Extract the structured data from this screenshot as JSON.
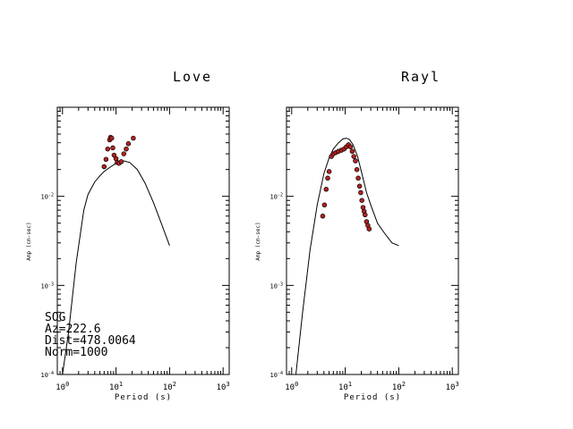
{
  "chart_data": [
    {
      "type": "scatter",
      "title": "Love",
      "xlabel": "Period (s)",
      "ylabel": "Amp (cm-sec)",
      "xscale": "log",
      "yscale": "log",
      "xlim": [
        0.8,
        1300
      ],
      "ylim": [
        0.0001,
        0.1
      ],
      "xticks": [
        {
          "v": 1,
          "b": "10",
          "e": "0"
        },
        {
          "v": 10,
          "b": "10",
          "e": "1"
        },
        {
          "v": 100,
          "b": "10",
          "e": "2"
        },
        {
          "v": 1000,
          "b": "10",
          "e": "3"
        }
      ],
      "yticks": [
        {
          "v": 0.0001,
          "b": "10",
          "e": "-4"
        },
        {
          "v": 0.001,
          "b": "10",
          "e": "-3"
        },
        {
          "v": 0.01,
          "b": "10",
          "e": "-2"
        }
      ],
      "grid": false,
      "annotations": [
        "SOG",
        "Az=222.6",
        "Dist=478.0064",
        "Norm=1000"
      ],
      "series": [
        {
          "kind": "line",
          "color": "#000000",
          "points": [
            [
              1.0,
              7e-05
            ],
            [
              1.3,
              0.0003
            ],
            [
              1.8,
              0.0018
            ],
            [
              2.5,
              0.007
            ],
            [
              3.0,
              0.0105
            ],
            [
              4.0,
              0.0145
            ],
            [
              5.0,
              0.017
            ],
            [
              6.0,
              0.019
            ],
            [
              8.0,
              0.0215
            ],
            [
              10.0,
              0.0235
            ],
            [
              14.0,
              0.025
            ],
            [
              18.0,
              0.024
            ],
            [
              25.0,
              0.02
            ],
            [
              35.0,
              0.014
            ],
            [
              50.0,
              0.0085
            ],
            [
              70.0,
              0.005
            ],
            [
              100.0,
              0.0028
            ]
          ]
        },
        {
          "kind": "scatter",
          "color": "#b22222",
          "points": [
            [
              6.0,
              0.0215
            ],
            [
              6.5,
              0.026
            ],
            [
              7.0,
              0.034
            ],
            [
              7.6,
              0.043
            ],
            [
              7.9,
              0.046
            ],
            [
              8.3,
              0.045
            ],
            [
              8.7,
              0.035
            ],
            [
              9.2,
              0.029
            ],
            [
              10.0,
              0.0265
            ],
            [
              10.5,
              0.024
            ],
            [
              11.3,
              0.0235
            ],
            [
              12.5,
              0.0245
            ],
            [
              14.0,
              0.03
            ],
            [
              15.5,
              0.034
            ],
            [
              17.0,
              0.039
            ],
            [
              21.0,
              0.045
            ]
          ]
        }
      ]
    },
    {
      "type": "scatter",
      "title": "Rayl",
      "xlabel": "Period (s)",
      "ylabel": "Amp (cm-sec)",
      "xscale": "log",
      "yscale": "log",
      "xlim": [
        0.8,
        1300
      ],
      "ylim": [
        0.0001,
        0.1
      ],
      "xticks": [
        {
          "v": 1,
          "b": "10",
          "e": "0"
        },
        {
          "v": 10,
          "b": "10",
          "e": "1"
        },
        {
          "v": 100,
          "b": "10",
          "e": "2"
        },
        {
          "v": 1000,
          "b": "10",
          "e": "3"
        }
      ],
      "yticks": [
        {
          "v": 0.0001,
          "b": "10",
          "e": "-4"
        },
        {
          "v": 0.001,
          "b": "10",
          "e": "-3"
        },
        {
          "v": 0.01,
          "b": "10",
          "e": "-2"
        }
      ],
      "grid": false,
      "annotations": [],
      "series": [
        {
          "kind": "line",
          "color": "#000000",
          "points": [
            [
              1.2,
              0.0001
            ],
            [
              1.6,
              0.0005
            ],
            [
              2.2,
              0.0025
            ],
            [
              3.0,
              0.008
            ],
            [
              4.0,
              0.018
            ],
            [
              5.0,
              0.027
            ],
            [
              6.0,
              0.034
            ],
            [
              7.5,
              0.04
            ],
            [
              9.0,
              0.044
            ],
            [
              10.5,
              0.045
            ],
            [
              12.0,
              0.0435
            ],
            [
              14.0,
              0.038
            ],
            [
              17.0,
              0.028
            ],
            [
              20.0,
              0.019
            ],
            [
              25.0,
              0.011
            ],
            [
              30.0,
              0.008
            ],
            [
              40.0,
              0.005
            ],
            [
              55.0,
              0.0038
            ],
            [
              75.0,
              0.003
            ],
            [
              100.0,
              0.0028
            ]
          ]
        },
        {
          "kind": "scatter",
          "color": "#b22222",
          "points": [
            [
              3.8,
              0.006
            ],
            [
              4.1,
              0.008
            ],
            [
              4.4,
              0.012
            ],
            [
              4.7,
              0.016
            ],
            [
              5.0,
              0.019
            ],
            [
              5.5,
              0.028
            ],
            [
              6.0,
              0.03
            ],
            [
              6.7,
              0.031
            ],
            [
              7.5,
              0.032
            ],
            [
              8.5,
              0.033
            ],
            [
              9.5,
              0.034
            ],
            [
              10.5,
              0.036
            ],
            [
              11.5,
              0.038
            ],
            [
              12.5,
              0.036
            ],
            [
              13.5,
              0.032
            ],
            [
              14.5,
              0.028
            ],
            [
              15.5,
              0.025
            ],
            [
              16.5,
              0.02
            ],
            [
              17.5,
              0.016
            ],
            [
              18.5,
              0.013
            ],
            [
              19.5,
              0.011
            ],
            [
              20.5,
              0.009
            ],
            [
              21.5,
              0.0075
            ],
            [
              22.5,
              0.0068
            ],
            [
              23.5,
              0.0062
            ],
            [
              25.0,
              0.0052
            ],
            [
              26.5,
              0.0047
            ],
            [
              28.0,
              0.0043
            ]
          ]
        }
      ]
    }
  ]
}
